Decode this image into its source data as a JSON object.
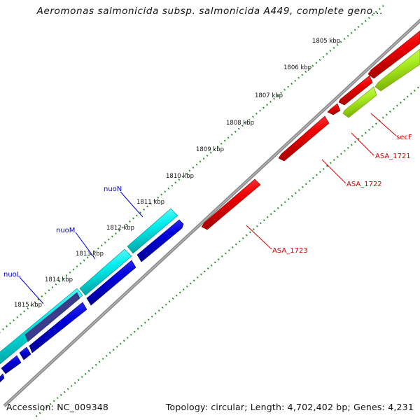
{
  "title": "Aeromonas salmonicida subsp. salmonicida A449, complete geno...",
  "footer": {
    "accession": "Accession: NC_009348",
    "topology": "Topology: circular; Length: 4,702,402 bp; Genes: 4,231"
  },
  "ticks": [
    "1805 kbp",
    "1806 kbp",
    "1807 kbp",
    "1808 kbp",
    "1809 kbp",
    "1810 kbp",
    "1811 kbp",
    "1812 kbp",
    "1813 kbp",
    "1814 kbp",
    "1815 kbp"
  ],
  "gene_labels": {
    "nuoN": "nuoN",
    "nuoM": "nuoM",
    "nuoL": "nuoL",
    "secF": "secF",
    "ASA_1721": "ASA_1721",
    "ASA_1722": "ASA_1722",
    "ASA_1723": "ASA_1723"
  },
  "colors": {
    "forward_cds": "#ff0000",
    "reverse_cds": "#0000ee",
    "cyan_feature": "#00f0f0",
    "lime_feature": "#aaf22a",
    "backbone": "#808080",
    "ticks": "#1a8a1a"
  }
}
